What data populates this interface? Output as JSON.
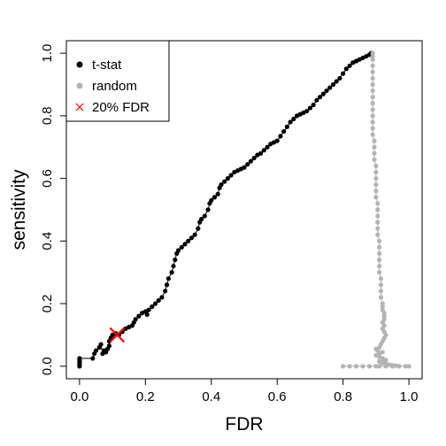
{
  "chart_data": {
    "type": "scatter",
    "title": "",
    "xlabel": "FDR",
    "ylabel": "sensitivity",
    "xlim": [
      -0.04,
      1.04
    ],
    "ylim": [
      -0.04,
      1.04
    ],
    "x_ticks": [
      "0.0",
      "0.2",
      "0.4",
      "0.6",
      "0.8",
      "1.0"
    ],
    "y_ticks": [
      "0.0",
      "0.2",
      "0.4",
      "0.6",
      "0.8",
      "1.0"
    ],
    "grid": false,
    "legend_position": "top-left",
    "legend": [
      {
        "label": "t-stat",
        "marker": "dot",
        "color": "#000000"
      },
      {
        "label": "random",
        "marker": "dot",
        "color": "#b3b3b3"
      },
      {
        "label": "20% FDR",
        "marker": "cross",
        "color": "#ff0000"
      }
    ],
    "series": [
      {
        "name": "t-stat",
        "color": "#000000",
        "points": [
          [
            0.0,
            0.0
          ],
          [
            0.0,
            0.005
          ],
          [
            0.0,
            0.01
          ],
          [
            0.0,
            0.015
          ],
          [
            0.0,
            0.02
          ],
          [
            0.0,
            0.025
          ],
          [
            0.04,
            0.025
          ],
          [
            0.045,
            0.04
          ],
          [
            0.05,
            0.05
          ],
          [
            0.06,
            0.06
          ],
          [
            0.065,
            0.07
          ],
          [
            0.07,
            0.04
          ],
          [
            0.075,
            0.05
          ],
          [
            0.08,
            0.045
          ],
          [
            0.085,
            0.055
          ],
          [
            0.09,
            0.065
          ],
          [
            0.09,
            0.08
          ],
          [
            0.095,
            0.09
          ],
          [
            0.1,
            0.1
          ],
          [
            0.11,
            0.105
          ],
          [
            0.12,
            0.1
          ],
          [
            0.13,
            0.11
          ],
          [
            0.14,
            0.12
          ],
          [
            0.15,
            0.125
          ],
          [
            0.16,
            0.13
          ],
          [
            0.165,
            0.14
          ],
          [
            0.17,
            0.15
          ],
          [
            0.18,
            0.16
          ],
          [
            0.19,
            0.17
          ],
          [
            0.2,
            0.175
          ],
          [
            0.205,
            0.165
          ],
          [
            0.21,
            0.18
          ],
          [
            0.22,
            0.19
          ],
          [
            0.23,
            0.2
          ],
          [
            0.24,
            0.21
          ],
          [
            0.25,
            0.22
          ],
          [
            0.26,
            0.24
          ],
          [
            0.265,
            0.26
          ],
          [
            0.27,
            0.28
          ],
          [
            0.28,
            0.3
          ],
          [
            0.285,
            0.32
          ],
          [
            0.29,
            0.34
          ],
          [
            0.295,
            0.36
          ],
          [
            0.3,
            0.37
          ],
          [
            0.31,
            0.38
          ],
          [
            0.32,
            0.39
          ],
          [
            0.33,
            0.4
          ],
          [
            0.34,
            0.41
          ],
          [
            0.35,
            0.42
          ],
          [
            0.36,
            0.44
          ],
          [
            0.365,
            0.46
          ],
          [
            0.37,
            0.47
          ],
          [
            0.38,
            0.48
          ],
          [
            0.39,
            0.5
          ],
          [
            0.395,
            0.52
          ],
          [
            0.4,
            0.53
          ],
          [
            0.41,
            0.54
          ],
          [
            0.42,
            0.55
          ],
          [
            0.425,
            0.57
          ],
          [
            0.43,
            0.58
          ],
          [
            0.44,
            0.59
          ],
          [
            0.45,
            0.6
          ],
          [
            0.46,
            0.61
          ],
          [
            0.47,
            0.62
          ],
          [
            0.48,
            0.625
          ],
          [
            0.49,
            0.63
          ],
          [
            0.5,
            0.635
          ],
          [
            0.51,
            0.645
          ],
          [
            0.52,
            0.655
          ],
          [
            0.53,
            0.665
          ],
          [
            0.54,
            0.675
          ],
          [
            0.55,
            0.68
          ],
          [
            0.56,
            0.69
          ],
          [
            0.57,
            0.7
          ],
          [
            0.58,
            0.71
          ],
          [
            0.59,
            0.715
          ],
          [
            0.6,
            0.72
          ],
          [
            0.61,
            0.735
          ],
          [
            0.62,
            0.75
          ],
          [
            0.63,
            0.765
          ],
          [
            0.64,
            0.78
          ],
          [
            0.65,
            0.79
          ],
          [
            0.66,
            0.8
          ],
          [
            0.67,
            0.805
          ],
          [
            0.68,
            0.81
          ],
          [
            0.69,
            0.815
          ],
          [
            0.7,
            0.825
          ],
          [
            0.71,
            0.835
          ],
          [
            0.72,
            0.85
          ],
          [
            0.73,
            0.86
          ],
          [
            0.74,
            0.87
          ],
          [
            0.75,
            0.88
          ],
          [
            0.76,
            0.89
          ],
          [
            0.77,
            0.9
          ],
          [
            0.78,
            0.91
          ],
          [
            0.79,
            0.92
          ],
          [
            0.8,
            0.935
          ],
          [
            0.81,
            0.95
          ],
          [
            0.82,
            0.96
          ],
          [
            0.83,
            0.97
          ],
          [
            0.84,
            0.975
          ],
          [
            0.85,
            0.98
          ],
          [
            0.86,
            0.985
          ],
          [
            0.87,
            0.99
          ],
          [
            0.88,
            0.995
          ],
          [
            0.885,
            1.0
          ]
        ]
      },
      {
        "name": "random",
        "color": "#b3b3b3",
        "points": [
          [
            0.89,
            1.0
          ],
          [
            0.89,
            0.99
          ],
          [
            0.89,
            0.98
          ],
          [
            0.89,
            0.96
          ],
          [
            0.89,
            0.94
          ],
          [
            0.89,
            0.92
          ],
          [
            0.89,
            0.9
          ],
          [
            0.89,
            0.88
          ],
          [
            0.89,
            0.86
          ],
          [
            0.89,
            0.84
          ],
          [
            0.89,
            0.82
          ],
          [
            0.89,
            0.8
          ],
          [
            0.89,
            0.78
          ],
          [
            0.89,
            0.76
          ],
          [
            0.89,
            0.74
          ],
          [
            0.895,
            0.72
          ],
          [
            0.895,
            0.7
          ],
          [
            0.895,
            0.68
          ],
          [
            0.895,
            0.66
          ],
          [
            0.9,
            0.64
          ],
          [
            0.9,
            0.62
          ],
          [
            0.9,
            0.6
          ],
          [
            0.9,
            0.58
          ],
          [
            0.9,
            0.56
          ],
          [
            0.9,
            0.54
          ],
          [
            0.905,
            0.52
          ],
          [
            0.905,
            0.5
          ],
          [
            0.905,
            0.48
          ],
          [
            0.905,
            0.46
          ],
          [
            0.905,
            0.44
          ],
          [
            0.905,
            0.42
          ],
          [
            0.91,
            0.4
          ],
          [
            0.91,
            0.38
          ],
          [
            0.91,
            0.36
          ],
          [
            0.91,
            0.34
          ],
          [
            0.91,
            0.32
          ],
          [
            0.91,
            0.3
          ],
          [
            0.915,
            0.28
          ],
          [
            0.915,
            0.26
          ],
          [
            0.915,
            0.24
          ],
          [
            0.915,
            0.22
          ],
          [
            0.92,
            0.2
          ],
          [
            0.92,
            0.19
          ],
          [
            0.92,
            0.18
          ],
          [
            0.925,
            0.17
          ],
          [
            0.925,
            0.16
          ],
          [
            0.925,
            0.15
          ],
          [
            0.92,
            0.14
          ],
          [
            0.925,
            0.13
          ],
          [
            0.92,
            0.12
          ],
          [
            0.925,
            0.11
          ],
          [
            0.93,
            0.1
          ],
          [
            0.925,
            0.09
          ],
          [
            0.92,
            0.08
          ],
          [
            0.915,
            0.07
          ],
          [
            0.91,
            0.06
          ],
          [
            0.9,
            0.055
          ],
          [
            0.905,
            0.05
          ],
          [
            0.92,
            0.045
          ],
          [
            0.91,
            0.04
          ],
          [
            0.9,
            0.035
          ],
          [
            0.91,
            0.03
          ],
          [
            0.92,
            0.025
          ],
          [
            0.93,
            0.02
          ],
          [
            0.91,
            0.015
          ],
          [
            0.92,
            0.01
          ],
          [
            0.93,
            0.008
          ],
          [
            0.94,
            0.005
          ],
          [
            0.95,
            0.003
          ],
          [
            0.96,
            0.002
          ],
          [
            1.0,
            0.0
          ],
          [
            0.99,
            0.0
          ],
          [
            0.97,
            0.0
          ],
          [
            0.95,
            0.0
          ],
          [
            0.93,
            0.0
          ],
          [
            0.91,
            0.0
          ],
          [
            0.9,
            0.0
          ],
          [
            0.88,
            0.0
          ],
          [
            0.86,
            0.0
          ],
          [
            0.84,
            0.0
          ],
          [
            0.82,
            0.0
          ],
          [
            0.8,
            0.0
          ]
        ]
      },
      {
        "name": "20% FDR",
        "color": "#ff0000",
        "points": [
          [
            0.114,
            0.1
          ]
        ]
      }
    ]
  }
}
